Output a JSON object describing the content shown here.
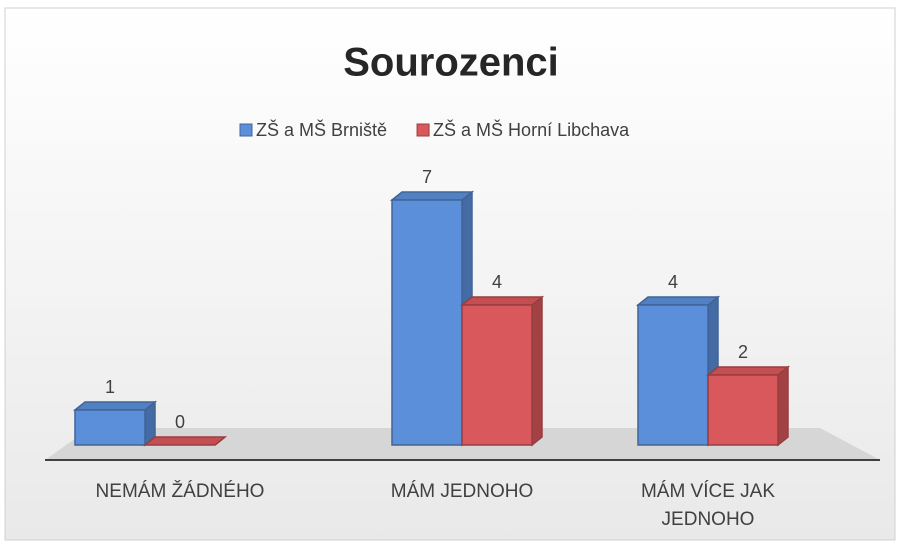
{
  "chart_data": {
    "type": "bar3d",
    "title": "Sourozenci",
    "categories": [
      "NEMÁM ŽÁDNÉHO",
      "MÁM JEDNOHO",
      "MÁM VÍCE JAK JEDNOHO"
    ],
    "series": [
      {
        "name": "ZŠ a MŠ Brniště",
        "color": "#5b8fd9",
        "values": [
          1,
          7,
          4
        ]
      },
      {
        "name": "ZŠ a MŠ Horní Libchava",
        "color": "#d9585c",
        "values": [
          0,
          4,
          2
        ]
      }
    ],
    "ylim": [
      0,
      8
    ],
    "legend": "top"
  }
}
